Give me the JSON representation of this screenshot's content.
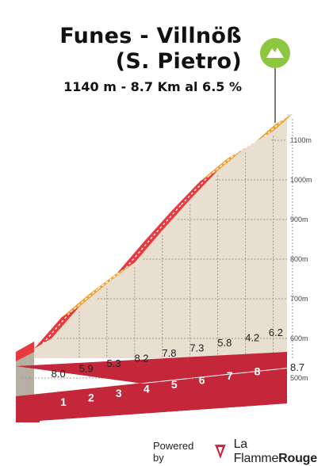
{
  "title": {
    "line1": "Funes - Villnöß",
    "line2": "(S. Pietro)",
    "subtitle": "1140 m - 8.7 Km al 6.5 %"
  },
  "footer": {
    "powered_by": "Powered by",
    "brand_plain": "La Flamme",
    "brand_bold": "Rouge"
  },
  "colors": {
    "steep": "#e8393f",
    "medium": "#f2a02e",
    "base": "#c4263a",
    "terrain": "#e9e0d2",
    "side": "#b9b0a4",
    "summit_marker": "#8dc63f"
  },
  "icons": {
    "summit": "mountain-icon",
    "brand": "flame-rouge-logo-icon"
  },
  "chart_data": {
    "type": "area",
    "title": "Funes - Villnöß (S. Pietro)",
    "subtitle": "1140 m - 8.7 Km al 6.5 %",
    "xlabel": "",
    "ylabel": "",
    "x_ticks": [
      "1",
      "2",
      "3",
      "4",
      "5",
      "6",
      "7",
      "8"
    ],
    "x_end_label": "8.7",
    "y_ticks": [
      500,
      600,
      700,
      800,
      900,
      1000,
      1100
    ],
    "y_tick_labels": [
      "500m",
      "600m",
      "700m",
      "800m",
      "900m",
      "1000m",
      "1100m"
    ],
    "ylim": [
      400,
      1140
    ],
    "xlim": [
      0,
      8.7
    ],
    "segments": [
      {
        "from_km": 0,
        "to_km": 1,
        "gradient": 8.0,
        "label": "8.0",
        "color_class": "steep"
      },
      {
        "from_km": 1,
        "to_km": 2,
        "gradient": 5.9,
        "label": "5.9",
        "color_class": "medium"
      },
      {
        "from_km": 2,
        "to_km": 3,
        "gradient": 5.3,
        "label": "5.3",
        "color_class": "medium"
      },
      {
        "from_km": 3,
        "to_km": 4,
        "gradient": 8.2,
        "label": "8.2",
        "color_class": "steep"
      },
      {
        "from_km": 4,
        "to_km": 5,
        "gradient": 7.8,
        "label": "7.8",
        "color_class": "steep"
      },
      {
        "from_km": 5,
        "to_km": 6,
        "gradient": 7.3,
        "label": "7.3",
        "color_class": "steep"
      },
      {
        "from_km": 6,
        "to_km": 7,
        "gradient": 5.8,
        "label": "5.8",
        "color_class": "medium"
      },
      {
        "from_km": 7,
        "to_km": 8,
        "gradient": 4.2,
        "label": "4.2",
        "color_class": "medium"
      },
      {
        "from_km": 8,
        "to_km": 8.7,
        "gradient": 6.2,
        "label": "6.2",
        "color_class": "medium"
      }
    ],
    "start_elevation": 574,
    "summit_elevation": 1140,
    "grid": true
  }
}
